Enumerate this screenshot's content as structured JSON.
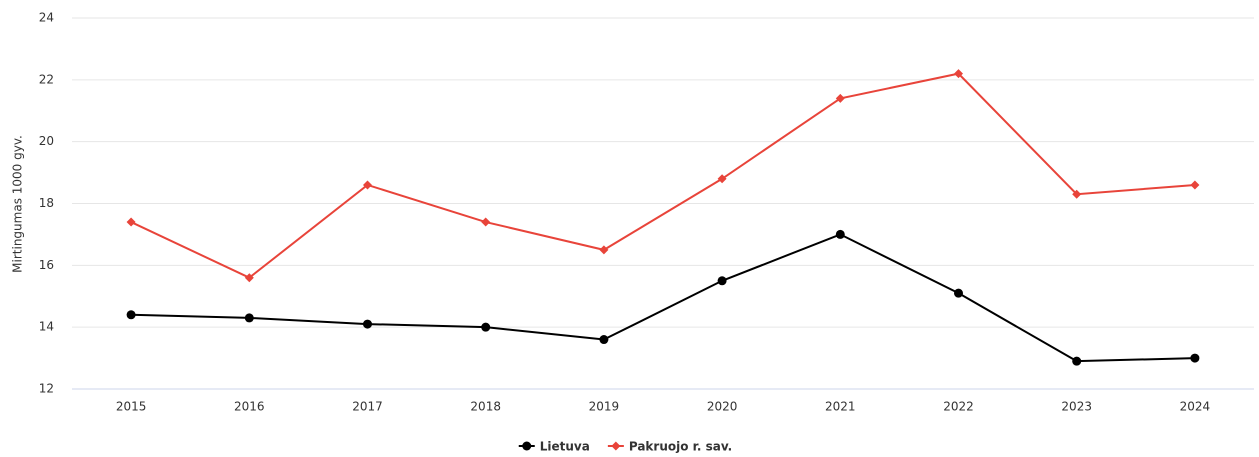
{
  "chart_data": {
    "type": "line",
    "y_label": "Mirtingumas 1000 gyv.",
    "categories": [
      "2015",
      "2016",
      "2017",
      "2018",
      "2019",
      "2020",
      "2021",
      "2022",
      "2023",
      "2024"
    ],
    "series": [
      {
        "name": "Lietuva",
        "color": "#000000",
        "marker": "circle",
        "values": [
          14.4,
          14.3,
          14.1,
          14.0,
          13.6,
          15.5,
          17.0,
          15.1,
          12.9,
          13.0
        ]
      },
      {
        "name": "Pakruojo r. sav.",
        "color": "#e8443a",
        "marker": "diamond",
        "values": [
          17.4,
          15.6,
          18.6,
          17.4,
          16.5,
          18.8,
          21.4,
          22.2,
          18.3,
          18.6
        ]
      }
    ],
    "ylim": [
      12,
      24
    ],
    "yticks": [
      12,
      14,
      16,
      18,
      20,
      22,
      24
    ],
    "grid": true,
    "legend": "bottom"
  }
}
